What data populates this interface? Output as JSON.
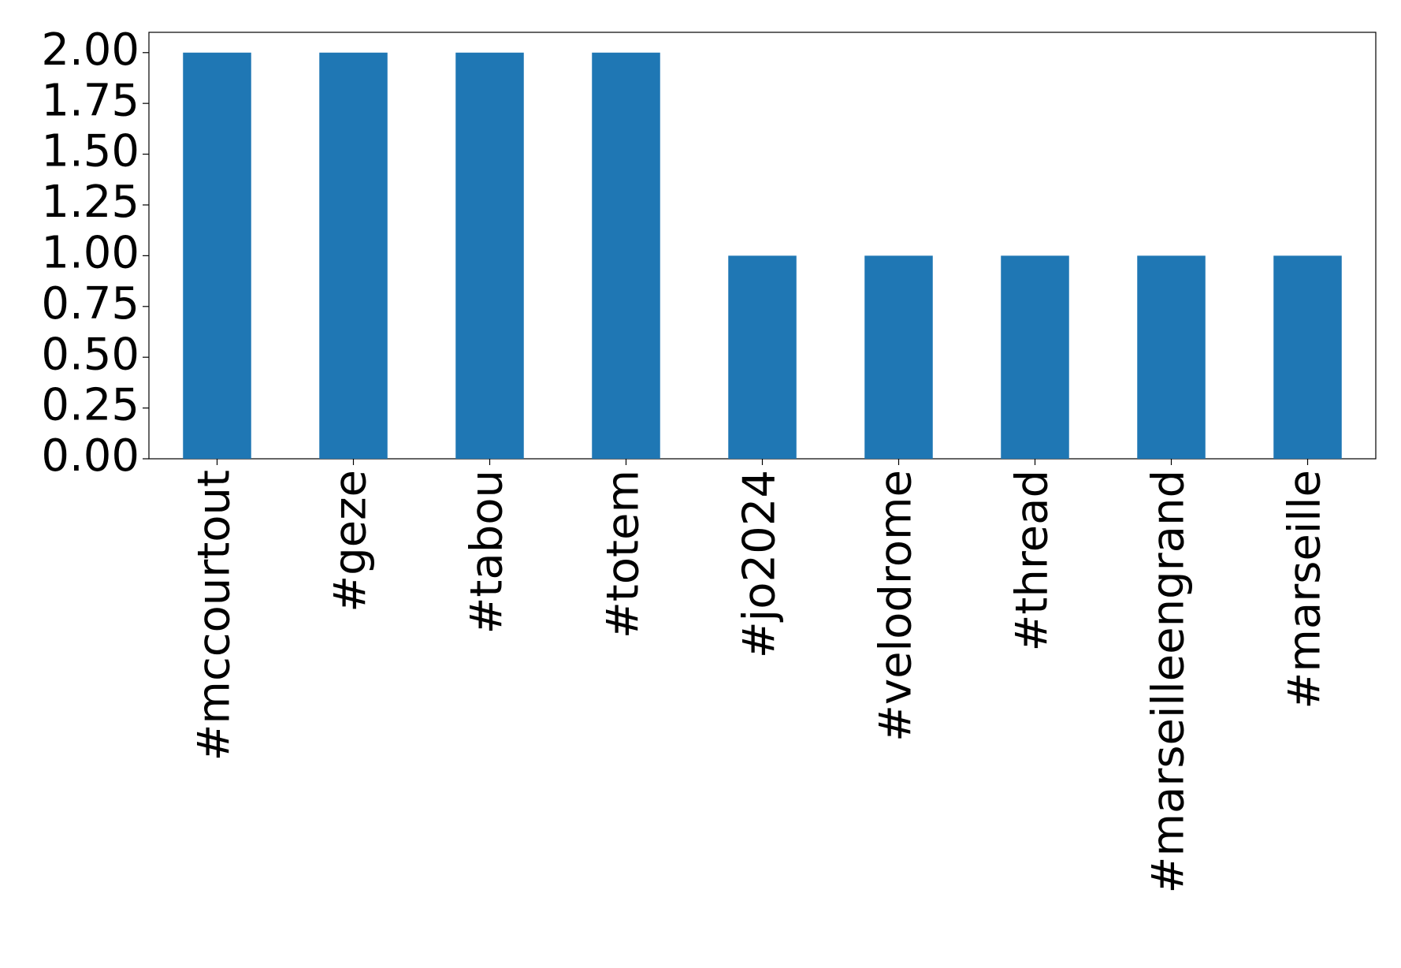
{
  "chart_data": {
    "type": "bar",
    "categories": [
      "#mccourtout",
      "#geze",
      "#tabou",
      "#totem",
      "#jo2024",
      "#velodrome",
      "#thread",
      "#marseilleengrand",
      "#marseille"
    ],
    "values": [
      2,
      2,
      2,
      2,
      1,
      1,
      1,
      1,
      1
    ],
    "color": "#1f77b4",
    "ylim": [
      0,
      2.1
    ],
    "yticks": [
      {
        "value": 0,
        "label": "0.00"
      },
      {
        "value": 0.25,
        "label": "0.25"
      },
      {
        "value": 0.5,
        "label": "0.50"
      },
      {
        "value": 0.75,
        "label": "0.75"
      },
      {
        "value": 1,
        "label": "1.00"
      },
      {
        "value": 1.25,
        "label": "1.25"
      },
      {
        "value": 1.5,
        "label": "1.50"
      },
      {
        "value": 1.75,
        "label": "1.75"
      },
      {
        "value": 2,
        "label": "2.00"
      }
    ],
    "grid": false
  }
}
